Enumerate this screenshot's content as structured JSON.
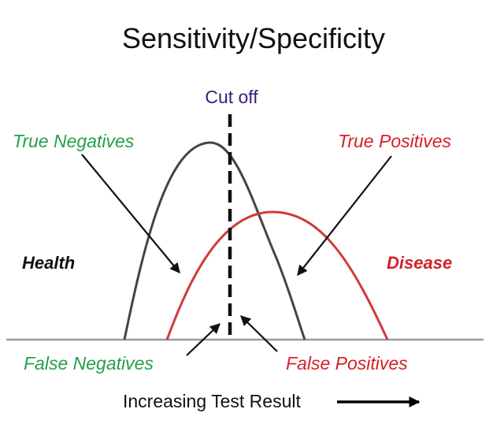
{
  "diagram": {
    "title": "Sensitivity/Specificity",
    "cutoff_label": "Cut off",
    "labels": {
      "true_negatives": "True Negatives",
      "true_positives": "True Positives",
      "false_negatives": "False Negatives",
      "false_positives": "False Positives",
      "health": "Health",
      "disease": "Disease"
    },
    "axis_label": "Increasing Test Result",
    "colors": {
      "green": "#22a048",
      "red": "#d42027",
      "purple": "#3a1c7a",
      "health_curve": "#444444",
      "disease_curve": "#d03a3a",
      "baseline": "#9a9a9a",
      "arrows": "#111111"
    }
  }
}
